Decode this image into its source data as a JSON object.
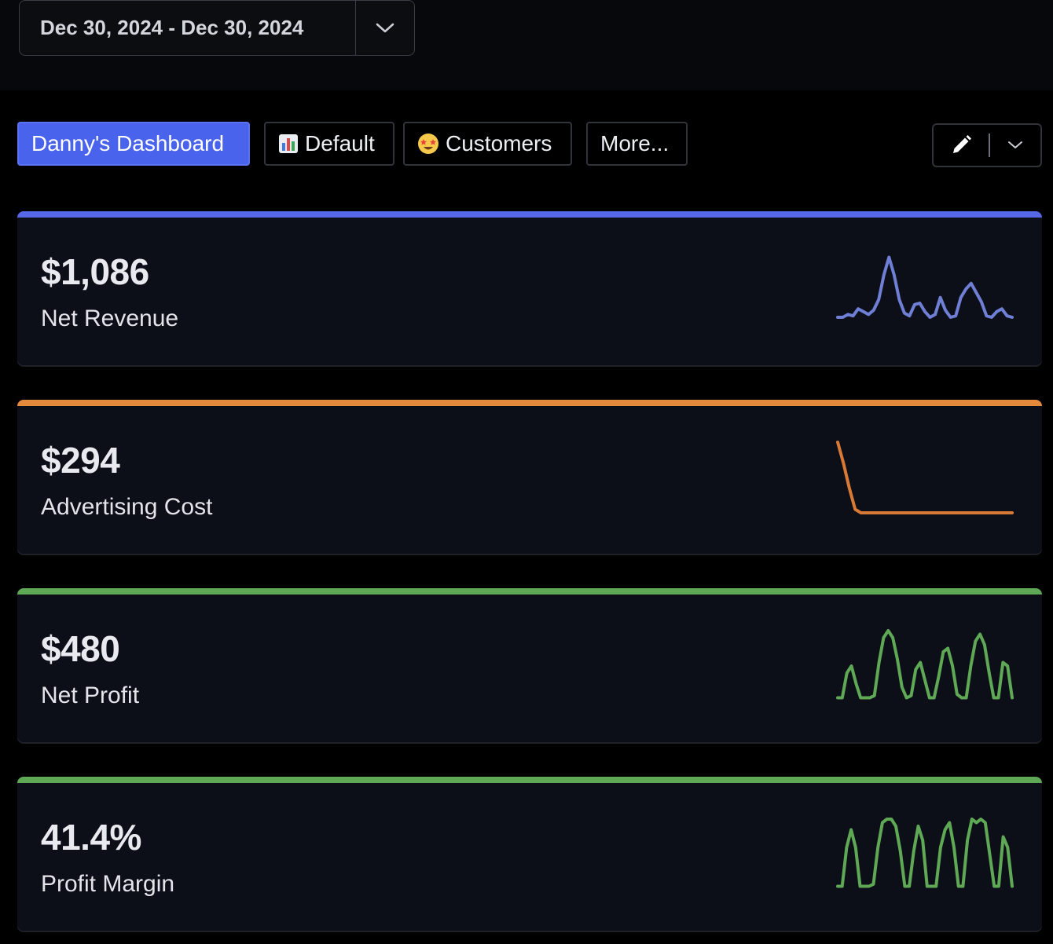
{
  "date_filter": {
    "range": "Dec 30, 2024 - Dec 30, 2024",
    "toggle_icon": "chevron-down-icon"
  },
  "tabs": [
    {
      "label": "Danny's Dashboard",
      "emoji": "",
      "active": true
    },
    {
      "label": "Default",
      "emoji": "📊",
      "active": false
    },
    {
      "label": "Customers",
      "emoji": "🤩",
      "active": false
    },
    {
      "label": "More...",
      "emoji": "",
      "active": false
    }
  ],
  "edit_controls": {
    "edit_icon": "pencil-icon",
    "menu_icon": "chevron-down-icon"
  },
  "colors": {
    "blue": "#5668e8",
    "orange": "#e58a3c",
    "green": "#5fa855"
  },
  "metrics": [
    {
      "value": "$1,086",
      "label": "Net Revenue",
      "accent": "#5668e8",
      "line_color": "#6f7fd6",
      "trend": [
        0.1,
        0.1,
        0.14,
        0.12,
        0.22,
        0.18,
        0.14,
        0.2,
        0.35,
        0.7,
        0.95,
        0.7,
        0.35,
        0.16,
        0.12,
        0.28,
        0.3,
        0.18,
        0.1,
        0.14,
        0.38,
        0.2,
        0.1,
        0.12,
        0.38,
        0.5,
        0.58,
        0.45,
        0.32,
        0.12,
        0.1,
        0.18,
        0.22,
        0.12,
        0.1
      ]
    },
    {
      "value": "$294",
      "label": "Advertising Cost",
      "accent": "#e58a3c",
      "line_color": "#d87a36",
      "trend": [
        1.0,
        0.7,
        0.35,
        0.05,
        0.0,
        0.0,
        0.0,
        0.0,
        0.0,
        0.0,
        0.0,
        0.0,
        0.0,
        0.0,
        0.0,
        0.0,
        0.0,
        0.0,
        0.0,
        0.0,
        0.0,
        0.0,
        0.0,
        0.0,
        0.0,
        0.0,
        0.0,
        0.0,
        0.0,
        0.0,
        0.0
      ]
    },
    {
      "value": "$480",
      "label": "Net Profit",
      "accent": "#5fa855",
      "line_color": "#5fa855",
      "trend": [
        0.05,
        0.05,
        0.4,
        0.5,
        0.25,
        0.05,
        0.05,
        0.05,
        0.08,
        0.55,
        0.9,
        1.0,
        0.9,
        0.6,
        0.2,
        0.05,
        0.08,
        0.45,
        0.55,
        0.3,
        0.05,
        0.05,
        0.35,
        0.7,
        0.75,
        0.5,
        0.1,
        0.05,
        0.05,
        0.5,
        0.85,
        0.95,
        0.8,
        0.4,
        0.05,
        0.05,
        0.55,
        0.5,
        0.05
      ]
    },
    {
      "value": "41.4%",
      "label": "Profit Margin",
      "accent": "#5fa855",
      "line_color": "#5fa855",
      "trend": [
        0.05,
        0.05,
        0.6,
        0.85,
        0.6,
        0.05,
        0.05,
        0.05,
        0.08,
        0.6,
        0.95,
        1.0,
        1.0,
        0.9,
        0.55,
        0.05,
        0.05,
        0.55,
        0.9,
        0.7,
        0.05,
        0.05,
        0.05,
        0.6,
        0.85,
        0.95,
        0.6,
        0.05,
        0.05,
        0.7,
        1.0,
        0.95,
        1.0,
        0.95,
        0.5,
        0.05,
        0.05,
        0.75,
        0.6,
        0.05
      ]
    }
  ]
}
